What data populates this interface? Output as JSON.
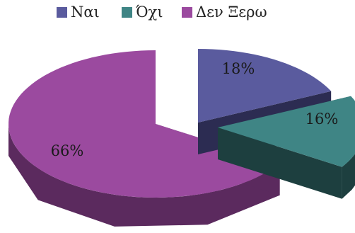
{
  "chart_data": {
    "type": "pie",
    "style": "3d-exploded",
    "categories": [
      "Ναι",
      "Όχι",
      "Δεν Ξερω"
    ],
    "values": [
      18,
      16,
      66
    ],
    "labels": [
      "18%",
      "16%",
      "66%"
    ],
    "colors": [
      "#5a5b9e",
      "#3f8585",
      "#9b4a9f"
    ],
    "side_colors": [
      "#2c2c52",
      "#1d3f3f",
      "#5b2a5e"
    ],
    "legend_position": "top",
    "title": ""
  }
}
